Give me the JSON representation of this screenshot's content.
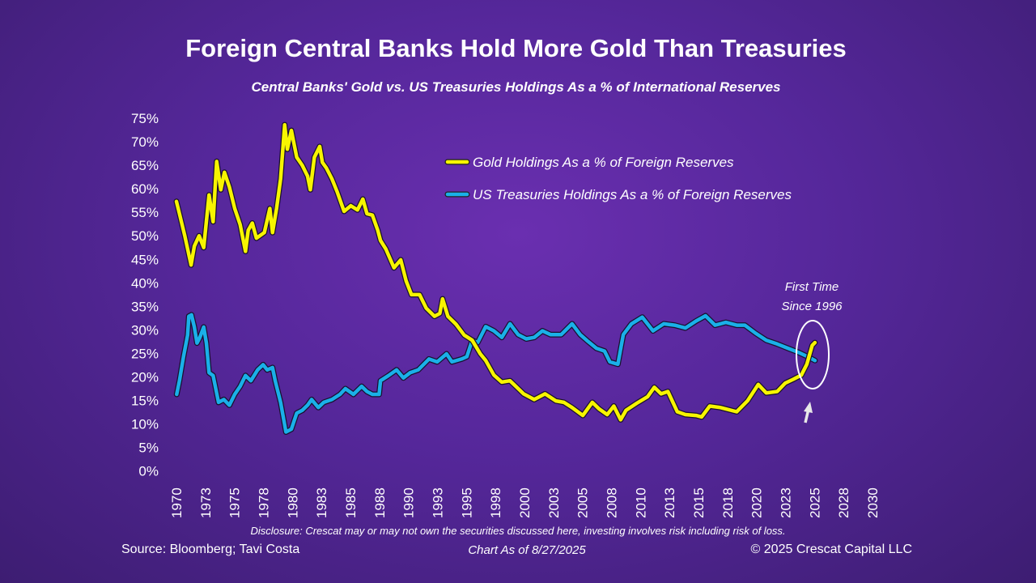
{
  "title": "Foreign Central Banks Hold More Gold Than Treasuries",
  "subtitle": "Central Banks' Gold vs. US Treasuries Holdings As a % of International Reserves",
  "footer": {
    "disclosure": "Disclosure: Crescat may or may not own the securities discussed here, investing involves risk including risk of loss.",
    "source": "Source: Bloomberg; Tavi Costa",
    "as_of": "Chart As of 8/27/2025",
    "copyright": "© 2025 Crescat Capital LLC"
  },
  "chart_data": {
    "type": "line",
    "title": "Foreign Central Banks Hold More Gold Than Treasuries",
    "xlabel": "",
    "ylabel": "",
    "xlim": [
      1970,
      2030
    ],
    "ylim": [
      0,
      75
    ],
    "y_ticks": [
      0,
      5,
      10,
      15,
      20,
      25,
      30,
      35,
      40,
      45,
      50,
      55,
      60,
      65,
      70,
      75
    ],
    "y_tick_labels": [
      "0%",
      "5%",
      "10%",
      "15%",
      "20%",
      "25%",
      "30%",
      "35%",
      "40%",
      "45%",
      "50%",
      "55%",
      "60%",
      "65%",
      "70%",
      "75%"
    ],
    "x_ticks": [
      1970,
      1972.5,
      1975,
      1977.5,
      1980,
      1982.5,
      1985,
      1987.5,
      1990,
      1992.5,
      1995,
      1997.5,
      2000,
      2002.5,
      2005,
      2007.5,
      2010,
      2012.5,
      2015,
      2017.5,
      2020,
      2022.5,
      2025,
      2027.5,
      2030
    ],
    "x_tick_labels": [
      "1970",
      "1973",
      "1975",
      "1978",
      "1980",
      "1983",
      "1985",
      "1988",
      "1990",
      "1993",
      "1995",
      "1998",
      "2000",
      "2003",
      "2005",
      "2008",
      "2010",
      "2013",
      "2015",
      "2018",
      "2020",
      "2023",
      "2025",
      "2028",
      "2030"
    ],
    "legend_position": "top-center",
    "series": [
      {
        "name": "Gold Holdings As a % of Foreign Reserves",
        "color": "#f7f500",
        "points": [
          [
            1970.0,
            57.3
          ],
          [
            1970.26,
            54.7
          ],
          [
            1970.72,
            50
          ],
          [
            1971.26,
            43.8
          ],
          [
            1971.54,
            47.8
          ],
          [
            1971.95,
            50
          ],
          [
            1972.35,
            47.5
          ],
          [
            1972.81,
            58.7
          ],
          [
            1973.16,
            53
          ],
          [
            1973.47,
            65.8
          ],
          [
            1973.82,
            59.8
          ],
          [
            1974.14,
            63.5
          ],
          [
            1974.56,
            60.4
          ],
          [
            1975.02,
            55.8
          ],
          [
            1975.49,
            52.4
          ],
          [
            1975.95,
            46.7
          ],
          [
            1976.19,
            51.2
          ],
          [
            1976.54,
            52.7
          ],
          [
            1976.89,
            49.5
          ],
          [
            1977.58,
            50.7
          ],
          [
            1978.05,
            55.8
          ],
          [
            1978.28,
            50.7
          ],
          [
            1978.63,
            55.8
          ],
          [
            1978.98,
            62.1
          ],
          [
            1979.33,
            73.6
          ],
          [
            1979.56,
            68.4
          ],
          [
            1979.91,
            72.4
          ],
          [
            1980.37,
            66.7
          ],
          [
            1980.84,
            65
          ],
          [
            1981.3,
            62.7
          ],
          [
            1981.54,
            59.8
          ],
          [
            1981.89,
            66.7
          ],
          [
            1982.35,
            69
          ],
          [
            1982.58,
            65.6
          ],
          [
            1982.93,
            64.4
          ],
          [
            1983.4,
            62.1
          ],
          [
            1983.86,
            59.3
          ],
          [
            1984.45,
            55.2
          ],
          [
            1985.03,
            56.4
          ],
          [
            1985.61,
            55.5
          ],
          [
            1986.07,
            57.8
          ],
          [
            1986.42,
            54.7
          ],
          [
            1986.89,
            54.4
          ],
          [
            1987.35,
            51.2
          ],
          [
            1987.59,
            49
          ],
          [
            1988.05,
            47.2
          ],
          [
            1988.75,
            43.2
          ],
          [
            1989.33,
            44.9
          ],
          [
            1989.8,
            40.4
          ],
          [
            1990.26,
            37.5
          ],
          [
            1990.96,
            37.5
          ],
          [
            1991.54,
            34.6
          ],
          [
            1992.24,
            32.9
          ],
          [
            1992.7,
            33.5
          ],
          [
            1992.94,
            36.6
          ],
          [
            1993.4,
            32.9
          ],
          [
            1994.1,
            31.2
          ],
          [
            1994.8,
            28.9
          ],
          [
            1995.49,
            27.8
          ],
          [
            1996.19,
            24.9
          ],
          [
            1996.66,
            23.5
          ],
          [
            1997.36,
            20.4
          ],
          [
            1998.05,
            18.9
          ],
          [
            1998.75,
            19.2
          ],
          [
            1999.22,
            18.1
          ],
          [
            1999.92,
            16.4
          ],
          [
            2000.84,
            15.2
          ],
          [
            2001.77,
            16.4
          ],
          [
            2002.71,
            14.9
          ],
          [
            2003.4,
            14.6
          ],
          [
            2004.1,
            13.5
          ],
          [
            2005.03,
            11.8
          ],
          [
            2005.85,
            14.6
          ],
          [
            2006.43,
            13.2
          ],
          [
            2007.13,
            12
          ],
          [
            2007.7,
            13.8
          ],
          [
            2008.29,
            10.9
          ],
          [
            2008.75,
            12.9
          ],
          [
            2009.68,
            14.4
          ],
          [
            2010.61,
            15.8
          ],
          [
            2011.19,
            17.8
          ],
          [
            2011.78,
            16.4
          ],
          [
            2012.36,
            16.9
          ],
          [
            2013.17,
            12.6
          ],
          [
            2013.87,
            12
          ],
          [
            2014.8,
            11.8
          ],
          [
            2015.27,
            11.5
          ],
          [
            2015.97,
            13.8
          ],
          [
            2016.89,
            13.5
          ],
          [
            2018.29,
            12.6
          ],
          [
            2019.22,
            14.9
          ],
          [
            2020.15,
            18.4
          ],
          [
            2020.85,
            16.6
          ],
          [
            2021.78,
            16.9
          ],
          [
            2022.48,
            18.7
          ],
          [
            2023.18,
            19.5
          ],
          [
            2023.87,
            20.4
          ],
          [
            2024.34,
            22.7
          ],
          [
            2024.8,
            26.7
          ],
          [
            2025.04,
            27.3
          ]
        ]
      },
      {
        "name": "US Treasuries Holdings As a % of Foreign Reserves",
        "color": "#1ab0e8",
        "points": [
          [
            1970.02,
            16.3
          ],
          [
            1970.26,
            19.2
          ],
          [
            1970.61,
            24.3
          ],
          [
            1970.96,
            28.9
          ],
          [
            1971.07,
            32.9
          ],
          [
            1971.3,
            33.2
          ],
          [
            1971.54,
            30.6
          ],
          [
            1971.77,
            27.2
          ],
          [
            1972.0,
            28.3
          ],
          [
            1972.35,
            30.6
          ],
          [
            1972.58,
            27.2
          ],
          [
            1972.81,
            20.9
          ],
          [
            1973.16,
            20.3
          ],
          [
            1973.63,
            14.6
          ],
          [
            1974.09,
            15.2
          ],
          [
            1974.56,
            14
          ],
          [
            1975.02,
            16.3
          ],
          [
            1975.49,
            18
          ],
          [
            1975.95,
            20.3
          ],
          [
            1976.42,
            19.2
          ],
          [
            1977.0,
            21.5
          ],
          [
            1977.47,
            22.6
          ],
          [
            1977.82,
            21.5
          ],
          [
            1978.28,
            22
          ],
          [
            1978.51,
            19.2
          ],
          [
            1978.98,
            14.6
          ],
          [
            1979.44,
            8.3
          ],
          [
            1979.91,
            8.9
          ],
          [
            1980.37,
            12.3
          ],
          [
            1980.84,
            12.9
          ],
          [
            1981.3,
            14
          ],
          [
            1981.65,
            15.2
          ],
          [
            1982.23,
            13.5
          ],
          [
            1982.7,
            14.6
          ],
          [
            1983.4,
            15.2
          ],
          [
            1984.1,
            16.3
          ],
          [
            1984.56,
            17.5
          ],
          [
            1985.26,
            16.3
          ],
          [
            1985.96,
            18
          ],
          [
            1986.42,
            16.9
          ],
          [
            1986.89,
            16.3
          ],
          [
            1987.47,
            16.3
          ],
          [
            1987.59,
            19.2
          ],
          [
            1988.28,
            20.3
          ],
          [
            1988.98,
            21.5
          ],
          [
            1989.56,
            19.8
          ],
          [
            1990.14,
            20.9
          ],
          [
            1990.84,
            21.5
          ],
          [
            1991.77,
            23.8
          ],
          [
            1992.47,
            23.2
          ],
          [
            1993.28,
            24.9
          ],
          [
            1993.75,
            23.2
          ],
          [
            1994.57,
            23.8
          ],
          [
            1995.03,
            24.3
          ],
          [
            1995.49,
            27.8
          ],
          [
            1995.96,
            27.3
          ],
          [
            1996.66,
            30.7
          ],
          [
            1997.36,
            29.8
          ],
          [
            1998.05,
            28.4
          ],
          [
            1998.75,
            31.3
          ],
          [
            1999.45,
            29
          ],
          [
            2000.15,
            28.1
          ],
          [
            2000.84,
            28.4
          ],
          [
            2001.54,
            29.8
          ],
          [
            2002.24,
            29
          ],
          [
            2003.17,
            29
          ],
          [
            2004.1,
            31.3
          ],
          [
            2004.8,
            29
          ],
          [
            2005.5,
            27.5
          ],
          [
            2006.2,
            26.1
          ],
          [
            2006.9,
            25.5
          ],
          [
            2007.36,
            23.2
          ],
          [
            2008.05,
            22.7
          ],
          [
            2008.52,
            29
          ],
          [
            2009.22,
            31.3
          ],
          [
            2010.15,
            32.7
          ],
          [
            2011.08,
            29.8
          ],
          [
            2012.01,
            31.3
          ],
          [
            2012.94,
            31
          ],
          [
            2013.87,
            30.4
          ],
          [
            2014.8,
            31.9
          ],
          [
            2015.61,
            33
          ],
          [
            2016.43,
            31
          ],
          [
            2017.36,
            31.6
          ],
          [
            2018.29,
            31
          ],
          [
            2018.99,
            31
          ],
          [
            2019.92,
            29.3
          ],
          [
            2020.85,
            27.8
          ],
          [
            2021.78,
            27
          ],
          [
            2022.71,
            26.1
          ],
          [
            2023.64,
            25.2
          ],
          [
            2024.34,
            24.4
          ],
          [
            2025.04,
            23.5
          ]
        ]
      }
    ],
    "annotation": {
      "line1": "First Time",
      "line2": "Since 1996"
    }
  }
}
